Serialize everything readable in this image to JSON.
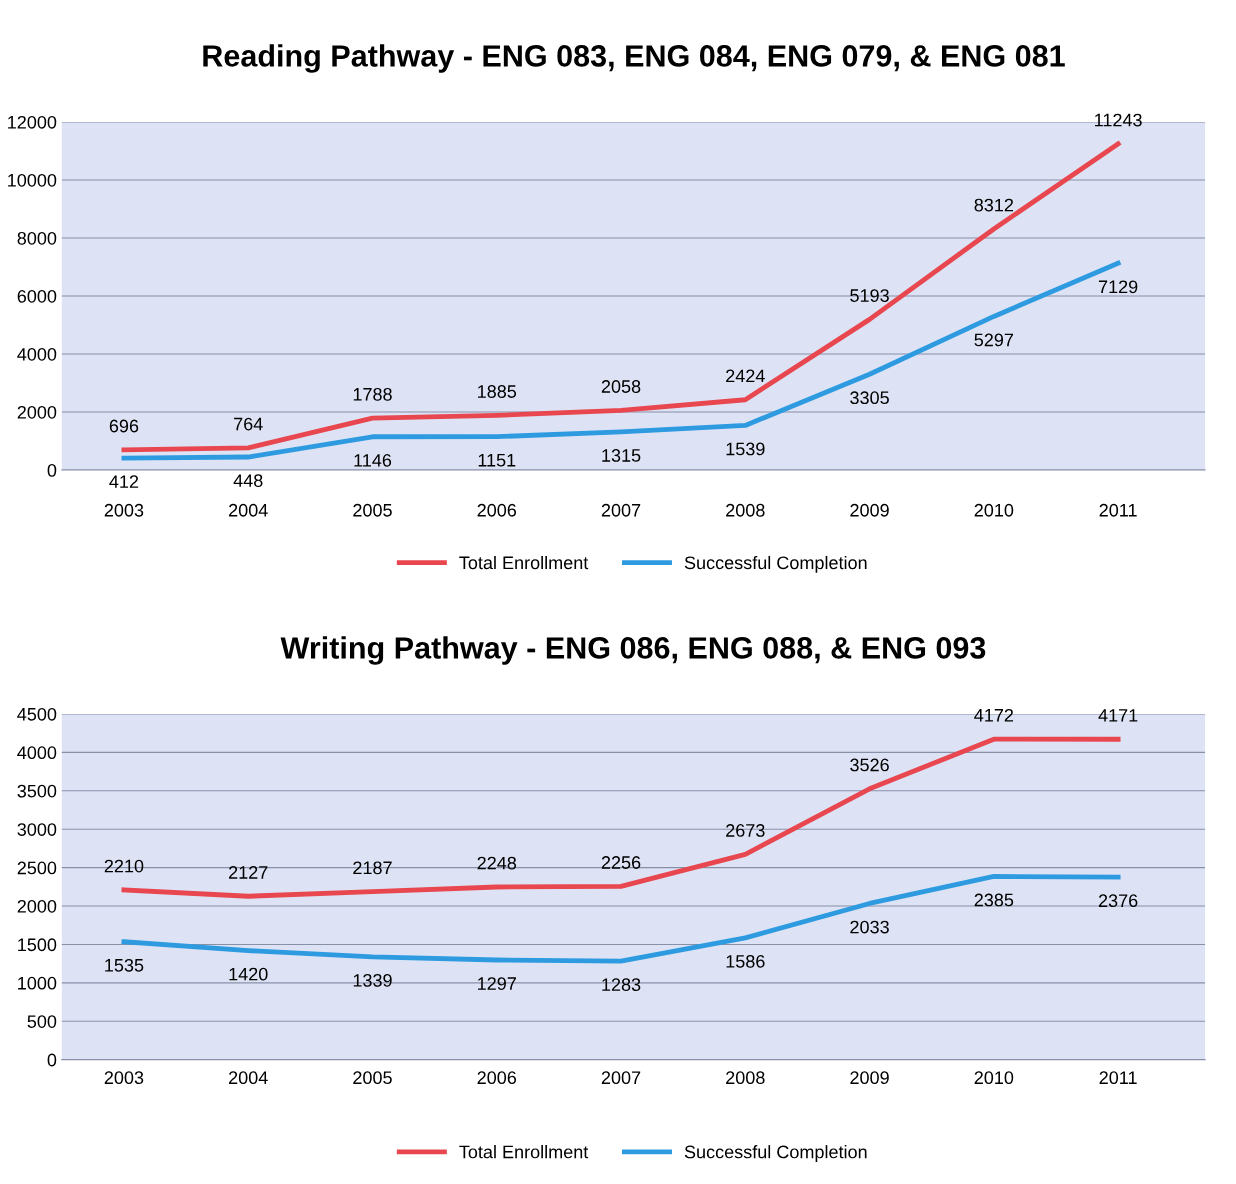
{
  "chart_data": [
    {
      "type": "line",
      "title": "Reading Pathway - ENG 083, ENG 084, ENG 079, & ENG 081",
      "categories": [
        "2003",
        "2004",
        "2005",
        "2006",
        "2007",
        "2008",
        "2009",
        "2010",
        "2011"
      ],
      "series": [
        {
          "name": "Total Enrollment",
          "color": "#e8474f",
          "values": [
            696,
            764,
            1788,
            1885,
            2058,
            2424,
            5193,
            8312,
            11243
          ]
        },
        {
          "name": "Successful Completion",
          "color": "#2e9be0",
          "values": [
            412,
            448,
            1146,
            1151,
            1315,
            1539,
            3305,
            5297,
            7129
          ]
        }
      ],
      "ylim": [
        0,
        12000
      ],
      "yticks": [
        0,
        2000,
        4000,
        6000,
        8000,
        10000,
        12000
      ],
      "grid": "y",
      "legend": "bottom",
      "data_labels": true,
      "marker": "none",
      "line_style": "solid"
    },
    {
      "type": "line",
      "title": "Writing Pathway - ENG 086, ENG 088, & ENG 093",
      "categories": [
        "2003",
        "2004",
        "2005",
        "2006",
        "2007",
        "2008",
        "2009",
        "2010",
        "2011"
      ],
      "series": [
        {
          "name": "Total Enrollment",
          "color": "#e8474f",
          "values": [
            2210,
            2127,
            2187,
            2248,
            2256,
            2673,
            3526,
            4172,
            4171
          ]
        },
        {
          "name": "Successful Completion",
          "color": "#2e9be0",
          "values": [
            1535,
            1420,
            1339,
            1297,
            1283,
            1586,
            2033,
            2385,
            2376
          ]
        }
      ],
      "ylim": [
        0,
        4500
      ],
      "yticks": [
        0,
        500,
        1000,
        1500,
        2000,
        2500,
        3000,
        3500,
        4000,
        4500
      ],
      "grid": "y",
      "legend": "bottom",
      "data_labels": true,
      "marker": "none",
      "line_style": "solid"
    }
  ]
}
